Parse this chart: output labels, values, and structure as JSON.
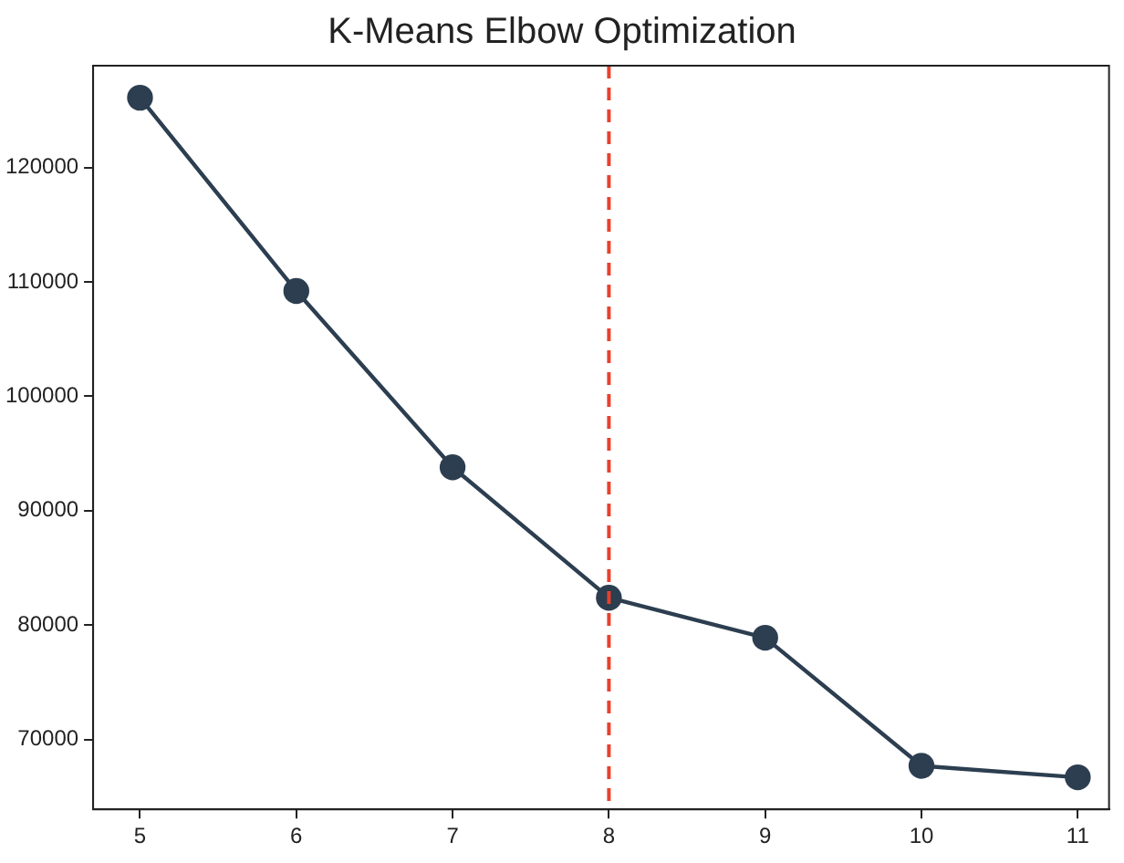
{
  "chart_data": {
    "type": "line",
    "title": "K-Means Elbow Optimization",
    "x": [
      5,
      6,
      7,
      8,
      9,
      10,
      11
    ],
    "series": [
      {
        "color": "#2c3e50",
        "values": [
          126100,
          109200,
          93800,
          82400,
          78900,
          67700,
          66700
        ]
      }
    ],
    "xlim": [
      4.7,
      11.2
    ],
    "xticks": [
      5,
      6,
      7,
      8,
      9,
      10,
      11
    ],
    "ylim": [
      63900,
      128900
    ],
    "yticks": [
      70000,
      80000,
      90000,
      100000,
      110000,
      120000
    ],
    "ref_lines": [
      {
        "axis": "x",
        "value": 8,
        "color": "#e8412c",
        "line_style": "dashed"
      }
    ],
    "grid": false,
    "legend": false,
    "marker": "circle",
    "line_style": "solid"
  }
}
